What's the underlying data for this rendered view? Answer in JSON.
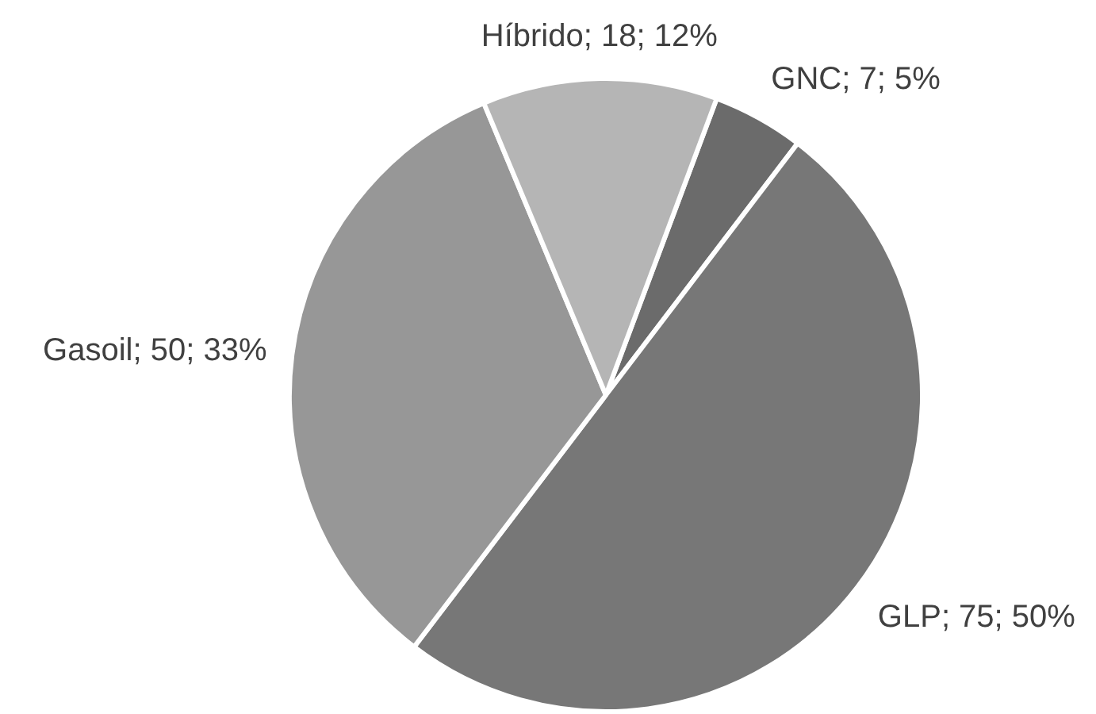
{
  "chart_data": {
    "type": "pie",
    "categories": [
      "GNC",
      "GLP",
      "Gasoil",
      "Híbrido"
    ],
    "values": [
      7,
      75,
      50,
      18
    ],
    "colors": [
      "#6b6b6b",
      "#777777",
      "#979797",
      "#b5b5b5"
    ],
    "value_labels": [
      "7; 5%",
      "75; 50%",
      "50; 33%",
      "18; 12%"
    ]
  }
}
